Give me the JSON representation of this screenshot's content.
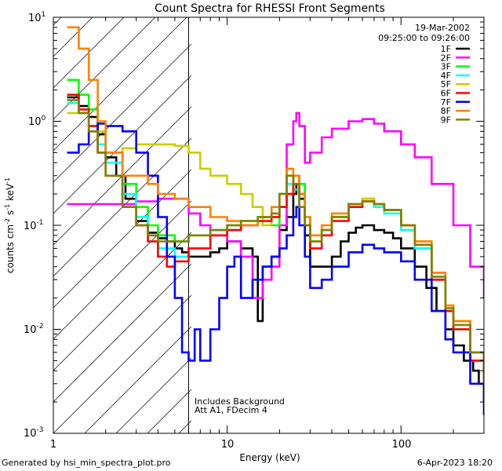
{
  "chart_data": {
    "type": "line",
    "title": "Count Spectra for RHESSI Front Segments",
    "xlabel": "Energy (keV)",
    "ylabel": "counts cm^-2 s^-1 keV^-1",
    "xscale": "log",
    "yscale": "log",
    "xlim": [
      1,
      300
    ],
    "ylim": [
      0.001,
      10
    ],
    "x_ticks": [
      "1",
      "10",
      "100"
    ],
    "y_ticks": [
      "10^-3",
      "10^-2",
      "10^-1",
      "10^0",
      "10^1"
    ],
    "date": "19-Mar-2002",
    "time_range": "09:25:00 to 09:26:00",
    "annotations": [
      "Includes Background",
      "Att A1, FDecim 4"
    ],
    "hatched_below_keV": 6,
    "series": [
      {
        "name": "1F",
        "color": "#000000",
        "x": [
          1.2,
          1.4,
          1.6,
          1.8,
          2.0,
          2.3,
          2.6,
          3.0,
          3.5,
          4.0,
          4.5,
          5.0,
          5.5,
          6,
          7,
          8,
          9,
          10,
          12,
          14,
          15,
          16,
          18,
          20,
          22,
          24,
          25,
          26,
          28,
          30,
          35,
          40,
          45,
          50,
          55,
          60,
          70,
          80,
          90,
          100,
          120,
          140,
          160,
          180,
          200,
          230,
          260,
          280,
          300
        ],
        "y": [
          1.7,
          1.4,
          1.1,
          0.75,
          0.45,
          0.3,
          0.18,
          0.11,
          0.085,
          0.075,
          0.07,
          0.06,
          0.055,
          0.05,
          0.05,
          0.055,
          0.06,
          0.07,
          0.06,
          0.05,
          0.012,
          0.04,
          0.05,
          0.09,
          0.12,
          0.2,
          0.25,
          0.18,
          0.08,
          0.04,
          0.04,
          0.05,
          0.07,
          0.085,
          0.095,
          0.1,
          0.09,
          0.085,
          0.075,
          0.06,
          0.04,
          0.025,
          0.015,
          0.01,
          0.007,
          0.005,
          0.004,
          0.003,
          0.002
        ]
      },
      {
        "name": "2F",
        "color": "#ff00ff",
        "x": [
          1.2,
          2,
          3,
          4,
          5,
          6,
          7,
          8,
          10,
          12,
          14,
          16,
          18,
          20,
          22,
          24,
          25,
          26,
          28,
          30,
          35,
          40,
          50,
          60,
          70,
          80,
          100,
          120,
          150,
          200,
          250,
          300
        ],
        "y": [
          0.16,
          0.16,
          0.17,
          0.18,
          0.18,
          0.13,
          0.1,
          0.08,
          0.07,
          0.05,
          0.02,
          0.03,
          0.04,
          0.1,
          0.6,
          1.0,
          1.2,
          0.9,
          0.4,
          0.5,
          0.7,
          0.85,
          1.0,
          1.05,
          0.95,
          0.8,
          0.6,
          0.45,
          0.25,
          0.1,
          0.04,
          0.02
        ]
      },
      {
        "name": "3F",
        "color": "#00ff00",
        "x": [
          1.2,
          1.4,
          1.6,
          1.8,
          2,
          2.5,
          3,
          3.5,
          4,
          5,
          6,
          8,
          10,
          12,
          15,
          18,
          20,
          22,
          24,
          26,
          28,
          30,
          35,
          40,
          50,
          60,
          70,
          80,
          100,
          120,
          150,
          180,
          200,
          250,
          300
        ],
        "y": [
          2.5,
          1.8,
          1.3,
          0.8,
          0.5,
          0.25,
          0.15,
          0.1,
          0.08,
          0.07,
          0.08,
          0.09,
          0.1,
          0.11,
          0.12,
          0.1,
          0.15,
          0.2,
          0.3,
          0.25,
          0.12,
          0.07,
          0.09,
          0.12,
          0.16,
          0.18,
          0.16,
          0.14,
          0.1,
          0.06,
          0.03,
          0.015,
          0.01,
          0.005,
          0.003
        ]
      },
      {
        "name": "4F",
        "color": "#00ffff",
        "x": [
          1.2,
          1.4,
          1.6,
          1.8,
          2,
          2.5,
          3,
          3.5,
          4,
          5,
          6,
          8,
          10,
          12,
          15,
          18,
          20,
          22,
          24,
          26,
          28,
          30,
          35,
          40,
          50,
          60,
          70,
          80,
          100,
          120,
          150,
          180,
          200,
          250,
          300
        ],
        "y": [
          1.5,
          1.2,
          0.9,
          0.6,
          0.4,
          0.2,
          0.12,
          0.07,
          0.06,
          0.05,
          0.06,
          0.08,
          0.09,
          0.1,
          0.11,
          0.12,
          0.2,
          0.25,
          0.22,
          0.15,
          0.1,
          0.07,
          0.08,
          0.11,
          0.15,
          0.17,
          0.15,
          0.13,
          0.09,
          0.06,
          0.03,
          0.015,
          0.01,
          0.005,
          0.003
        ]
      },
      {
        "name": "5F",
        "color": "#cccc00",
        "x": [
          1.2,
          1.6,
          2,
          2.5,
          3,
          3.5,
          4,
          5,
          6,
          7,
          8,
          10,
          12,
          14,
          16,
          18,
          20,
          22,
          24,
          26,
          28,
          30,
          35,
          40,
          50,
          60,
          70,
          80,
          100,
          120,
          150,
          180,
          200,
          250,
          300
        ],
        "y": [
          1.2,
          0.8,
          0.5,
          0.55,
          0.6,
          0.6,
          0.6,
          0.58,
          0.5,
          0.35,
          0.3,
          0.25,
          0.2,
          0.15,
          0.1,
          0.12,
          0.15,
          0.2,
          0.25,
          0.2,
          0.1,
          0.07,
          0.09,
          0.12,
          0.16,
          0.18,
          0.16,
          0.14,
          0.1,
          0.07,
          0.035,
          0.017,
          0.012,
          0.006,
          0.003
        ]
      },
      {
        "name": "6F",
        "color": "#ff0000",
        "x": [
          1.2,
          1.4,
          1.6,
          1.8,
          2,
          2.5,
          3,
          3.5,
          4,
          4.5,
          5,
          6,
          8,
          10,
          12,
          15,
          18,
          20,
          22,
          24,
          26,
          28,
          30,
          35,
          40,
          50,
          60,
          70,
          80,
          100,
          120,
          150,
          180,
          200,
          250,
          300
        ],
        "y": [
          1.8,
          1.3,
          0.9,
          0.5,
          0.3,
          0.15,
          0.1,
          0.07,
          0.05,
          0.04,
          0.045,
          0.06,
          0.08,
          0.09,
          0.1,
          0.11,
          0.12,
          0.15,
          0.2,
          0.3,
          0.2,
          0.1,
          0.06,
          0.08,
          0.11,
          0.15,
          0.17,
          0.16,
          0.14,
          0.1,
          0.065,
          0.03,
          0.015,
          0.01,
          0.005,
          0.003
        ]
      },
      {
        "name": "7F",
        "color": "#0000ff",
        "x": [
          1.2,
          1.4,
          1.6,
          1.8,
          2,
          2.5,
          3,
          3.5,
          4,
          4.5,
          5,
          5.5,
          6,
          6.5,
          7,
          8,
          9,
          10,
          11,
          12,
          14,
          16,
          18,
          20,
          22,
          24,
          25,
          26,
          28,
          30,
          35,
          40,
          50,
          60,
          70,
          80,
          100,
          120,
          150,
          180,
          200,
          250,
          300
        ],
        "y": [
          0.5,
          0.6,
          0.8,
          0.95,
          0.9,
          0.8,
          0.5,
          0.3,
          0.12,
          0.05,
          0.02,
          0.006,
          0.005,
          0.01,
          0.005,
          0.01,
          0.02,
          0.04,
          0.05,
          0.02,
          0.03,
          0.04,
          0.05,
          0.06,
          0.08,
          0.12,
          0.15,
          0.1,
          0.05,
          0.025,
          0.03,
          0.04,
          0.055,
          0.065,
          0.06,
          0.055,
          0.045,
          0.03,
          0.015,
          0.008,
          0.006,
          0.003,
          0.0015
        ]
      },
      {
        "name": "8F",
        "color": "#ff8000",
        "x": [
          1.2,
          1.4,
          1.6,
          1.8,
          2,
          2.5,
          3,
          3.5,
          4,
          5,
          6,
          8,
          10,
          12,
          15,
          18,
          20,
          22,
          24,
          26,
          28,
          30,
          35,
          40,
          50,
          60,
          70,
          80,
          100,
          120,
          150,
          180,
          200,
          250,
          300
        ],
        "y": [
          8,
          5,
          2.5,
          1.0,
          0.5,
          0.3,
          0.3,
          0.25,
          0.2,
          0.18,
          0.15,
          0.12,
          0.11,
          0.1,
          0.12,
          0.15,
          0.2,
          0.35,
          0.3,
          0.2,
          0.12,
          0.08,
          0.1,
          0.13,
          0.16,
          0.17,
          0.16,
          0.14,
          0.1,
          0.07,
          0.035,
          0.017,
          0.012,
          0.006,
          0.003
        ]
      },
      {
        "name": "9F",
        "color": "#808000",
        "x": [
          1.2,
          1.4,
          1.6,
          1.8,
          2,
          2.5,
          3,
          3.5,
          4,
          5,
          6,
          8,
          10,
          12,
          15,
          18,
          20,
          22,
          24,
          26,
          28,
          30,
          35,
          40,
          50,
          60,
          70,
          80,
          100,
          120,
          150,
          180,
          200,
          250,
          300
        ],
        "y": [
          1.6,
          1.2,
          0.8,
          0.5,
          0.3,
          0.15,
          0.1,
          0.08,
          0.07,
          0.07,
          0.08,
          0.09,
          0.1,
          0.11,
          0.12,
          0.13,
          0.2,
          0.3,
          0.25,
          0.15,
          0.1,
          0.07,
          0.09,
          0.12,
          0.16,
          0.17,
          0.16,
          0.14,
          0.1,
          0.065,
          0.032,
          0.016,
          0.011,
          0.006,
          0.003
        ]
      }
    ]
  },
  "footer": {
    "generated_by": "Generated by hsi_min_spectra_plot.pro",
    "timestamp": "6-Apr-2023 18:20"
  }
}
